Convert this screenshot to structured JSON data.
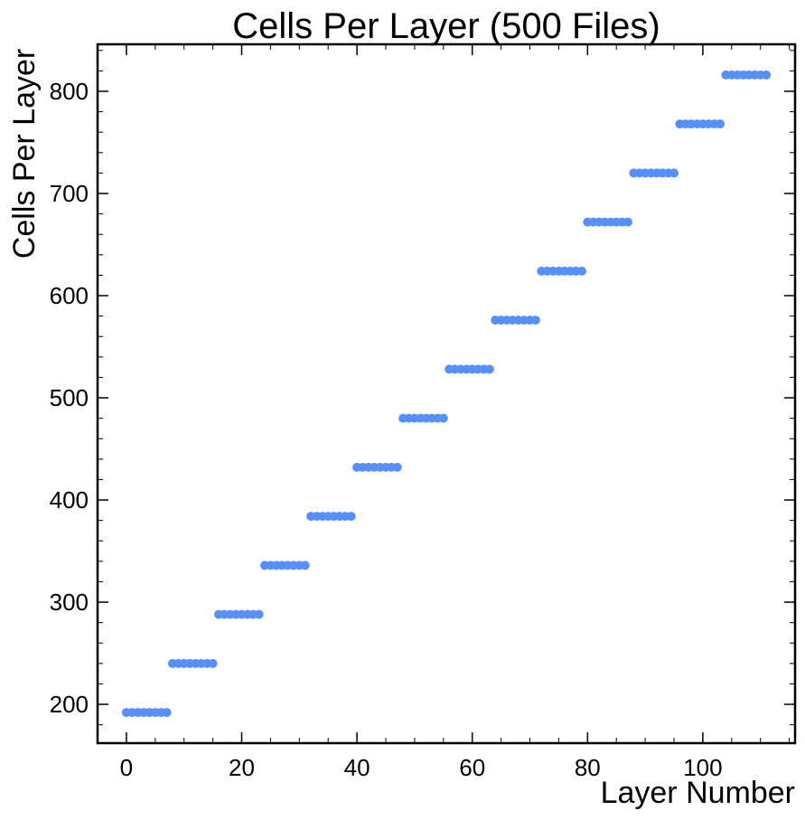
{
  "chart_data": {
    "type": "scatter",
    "title": "Cells Per Layer (500 Files)",
    "xlabel": "Layer Number",
    "ylabel": "Cells Per Layer",
    "xlim": [
      -5,
      116
    ],
    "ylim": [
      162,
      846
    ],
    "xticks": [
      0,
      20,
      40,
      60,
      80,
      100
    ],
    "yticks": [
      200,
      300,
      400,
      500,
      600,
      700,
      800
    ],
    "xtick_labels": [
      "0",
      "20",
      "40",
      "60",
      "80",
      "100"
    ],
    "ytick_labels": [
      "200",
      "300",
      "400",
      "500",
      "600",
      "700",
      "800"
    ],
    "grid": false,
    "legend": "none",
    "marker_color": "#5790fc",
    "series": [
      {
        "x": [
          0,
          1,
          2,
          3,
          4,
          5,
          6,
          7,
          8,
          9,
          10,
          11,
          12,
          13,
          14,
          15,
          16,
          17,
          18,
          19,
          20,
          21,
          22,
          23,
          24,
          25,
          26,
          27,
          28,
          29,
          30,
          31,
          32,
          33,
          34,
          35,
          36,
          37,
          38,
          39,
          40,
          41,
          42,
          43,
          44,
          45,
          46,
          47,
          48,
          49,
          50,
          51,
          52,
          53,
          54,
          55,
          56,
          57,
          58,
          59,
          60,
          61,
          62,
          63,
          64,
          65,
          66,
          67,
          68,
          69,
          70,
          71,
          72,
          73,
          74,
          75,
          76,
          77,
          78,
          79,
          80,
          81,
          82,
          83,
          84,
          85,
          86,
          87,
          88,
          89,
          90,
          91,
          92,
          93,
          94,
          95,
          96,
          97,
          98,
          99,
          100,
          101,
          102,
          103,
          104,
          105,
          106,
          107,
          108,
          109,
          110,
          111
        ],
        "y": [
          192,
          192,
          192,
          192,
          192,
          192,
          192,
          192,
          240,
          240,
          240,
          240,
          240,
          240,
          240,
          240,
          288,
          288,
          288,
          288,
          288,
          288,
          288,
          288,
          336,
          336,
          336,
          336,
          336,
          336,
          336,
          336,
          384,
          384,
          384,
          384,
          384,
          384,
          384,
          384,
          432,
          432,
          432,
          432,
          432,
          432,
          432,
          432,
          480,
          480,
          480,
          480,
          480,
          480,
          480,
          480,
          528,
          528,
          528,
          528,
          528,
          528,
          528,
          528,
          576,
          576,
          576,
          576,
          576,
          576,
          576,
          576,
          624,
          624,
          624,
          624,
          624,
          624,
          624,
          624,
          672,
          672,
          672,
          672,
          672,
          672,
          672,
          672,
          720,
          720,
          720,
          720,
          720,
          720,
          720,
          720,
          768,
          768,
          768,
          768,
          768,
          768,
          768,
          768,
          816,
          816,
          816,
          816,
          816,
          816,
          816,
          816
        ]
      }
    ]
  }
}
